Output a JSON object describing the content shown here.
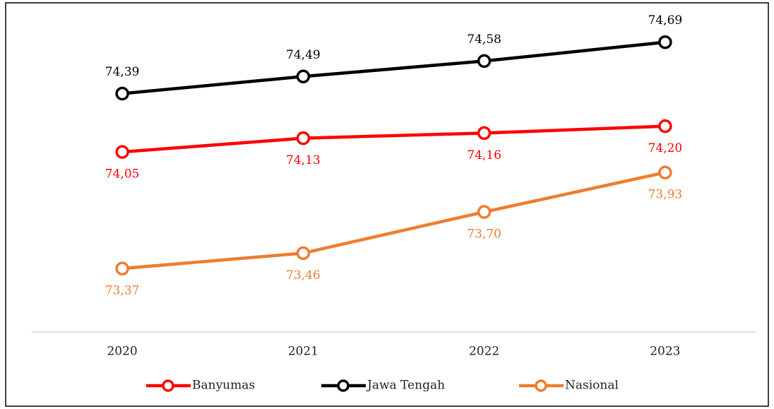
{
  "chart_data": {
    "type": "line",
    "categories": [
      "2020",
      "2021",
      "2022",
      "2023"
    ],
    "series": [
      {
        "name": "Banyumas",
        "color": "#ff0000",
        "values": [
          74.05,
          74.13,
          74.16,
          74.2
        ],
        "value_labels": [
          "74,05",
          "74,13",
          "74,16",
          "74,20"
        ],
        "label_position": "below"
      },
      {
        "name": "Jawa Tengah",
        "color": "#000000",
        "values": [
          74.39,
          74.49,
          74.58,
          74.69
        ],
        "value_labels": [
          "74,39",
          "74,49",
          "74,58",
          "74,69"
        ],
        "label_position": "above"
      },
      {
        "name": "Nasional",
        "color": "#ed7d31",
        "values": [
          73.37,
          73.46,
          73.7,
          73.93
        ],
        "value_labels": [
          "73,37",
          "73,46",
          "73,70",
          "73,93"
        ],
        "label_position": "below"
      }
    ],
    "ylim": [
      73.0,
      74.8
    ],
    "legend": "bottom"
  }
}
